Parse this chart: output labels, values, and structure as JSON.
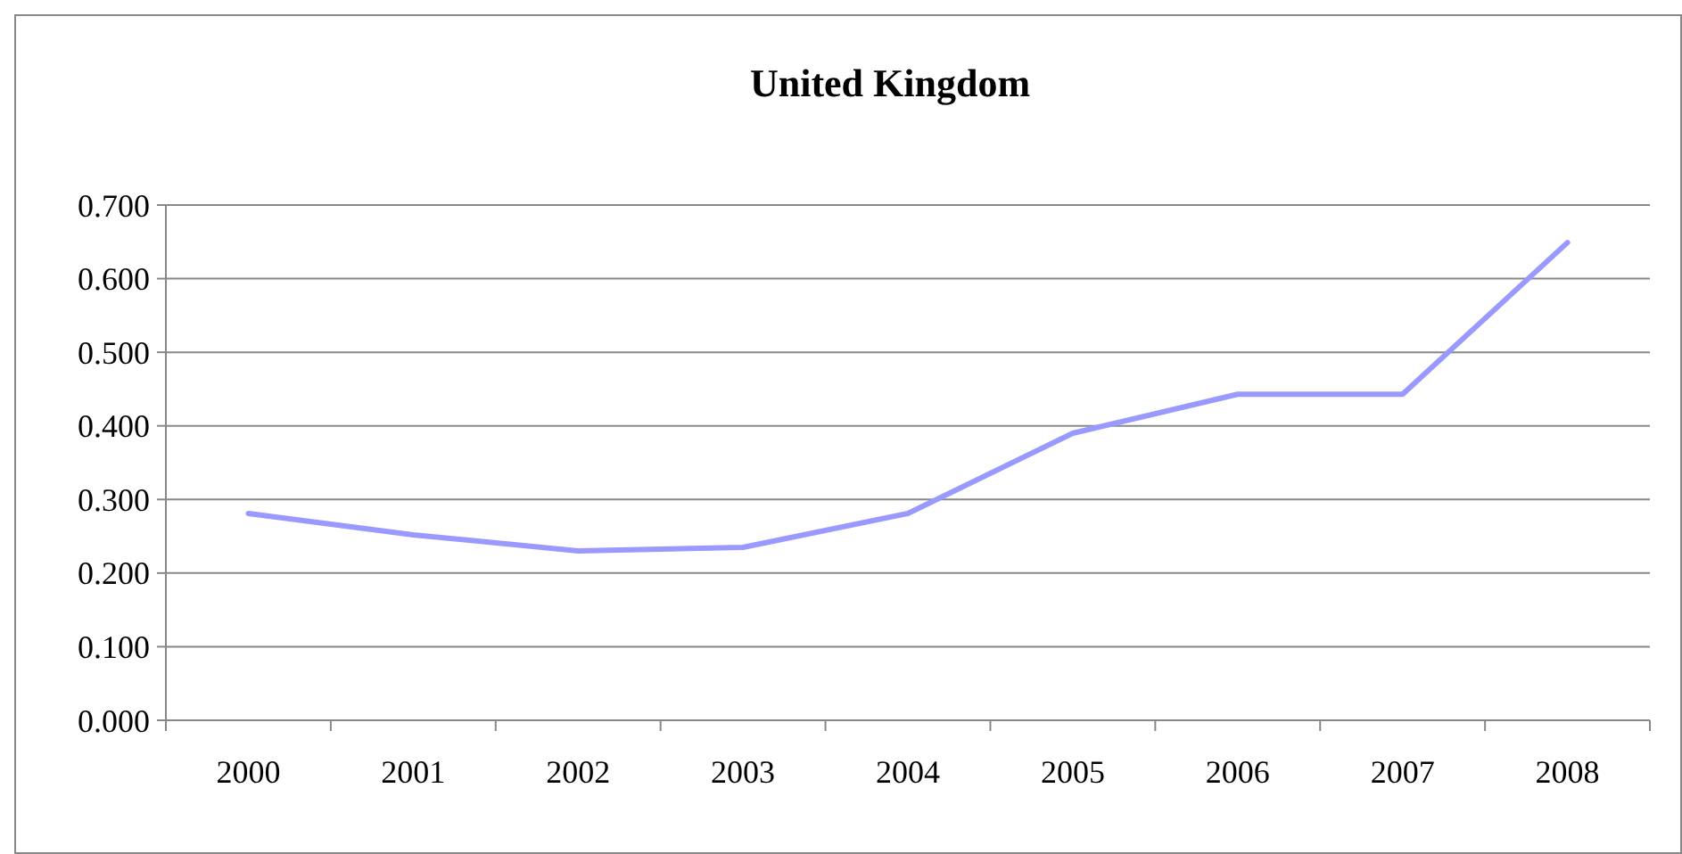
{
  "chart_data": {
    "type": "line",
    "title": "United Kingdom",
    "categories": [
      "2000",
      "2001",
      "2002",
      "2003",
      "2004",
      "2005",
      "2006",
      "2007",
      "2008"
    ],
    "series": [
      {
        "color": "#9999ff",
        "values": [
          0.281,
          0.252,
          0.23,
          0.235,
          0.281,
          0.39,
          0.443,
          0.443,
          0.649
        ]
      }
    ],
    "ylim": [
      0,
      0.7
    ],
    "yticks": [
      {
        "value": 0,
        "label": "0.000"
      },
      {
        "value": 0.1,
        "label": "0.100"
      },
      {
        "value": 0.2,
        "label": "0.200"
      },
      {
        "value": 0.3,
        "label": "0.300"
      },
      {
        "value": 0.4,
        "label": "0.400"
      },
      {
        "value": 0.5,
        "label": "0.500"
      },
      {
        "value": 0.6,
        "label": "0.600"
      },
      {
        "value": 0.7,
        "label": "0.700"
      }
    ],
    "grid": "y",
    "marker": "none",
    "line_style": "solid"
  }
}
